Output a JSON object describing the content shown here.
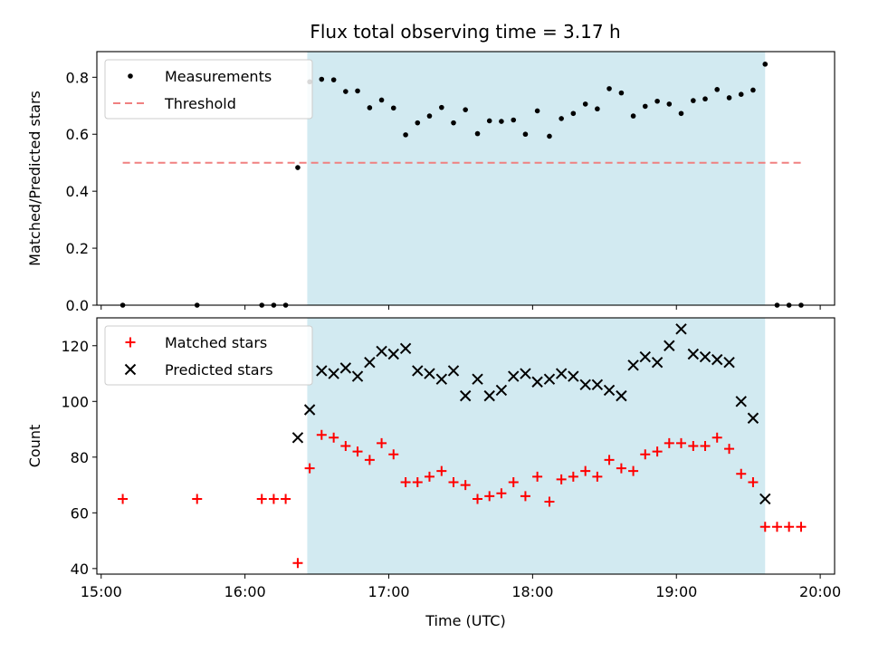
{
  "title": "Flux total observing time = 3.17 h",
  "chart_data": [
    {
      "type": "scatter",
      "ylabel": "Matched/Predicted stars",
      "ylim": [
        0,
        0.89
      ],
      "yticks": [
        0.0,
        0.2,
        0.4,
        0.6,
        0.8
      ],
      "ytick_labels": [
        "0.0",
        "0.2",
        "0.4",
        "0.6",
        "0.8"
      ],
      "xlim_hours": [
        14.97,
        20.1
      ],
      "legend_position": "top-left",
      "shade": {
        "x0": 16.433,
        "x1": 19.617,
        "color": "#add8e6"
      },
      "series": [
        {
          "name": "Measurements",
          "marker": "dot",
          "color": "#000000",
          "x": [
            15.15,
            15.667,
            16.117,
            16.2,
            16.283,
            16.367,
            16.45,
            16.533,
            16.617,
            16.7,
            16.783,
            16.867,
            16.95,
            17.033,
            17.117,
            17.2,
            17.283,
            17.367,
            17.45,
            17.533,
            17.617,
            17.7,
            17.783,
            17.867,
            17.95,
            18.033,
            18.117,
            18.2,
            18.283,
            18.367,
            18.45,
            18.533,
            18.617,
            18.7,
            18.783,
            18.867,
            18.95,
            19.033,
            19.117,
            19.2,
            19.283,
            19.367,
            19.45,
            19.533,
            19.617,
            19.7,
            19.783,
            19.867
          ],
          "y": [
            0.0,
            0.0,
            0.0,
            0.0,
            0.0,
            0.483,
            0.784,
            0.793,
            0.791,
            0.75,
            0.752,
            0.693,
            0.72,
            0.692,
            0.598,
            0.64,
            0.664,
            0.694,
            0.64,
            0.686,
            0.602,
            0.647,
            0.645,
            0.65,
            0.6,
            0.682,
            0.593,
            0.655,
            0.673,
            0.706,
            0.689,
            0.76,
            0.745,
            0.664,
            0.698,
            0.716,
            0.706,
            0.673,
            0.718,
            0.724,
            0.757,
            0.728,
            0.74,
            0.755,
            0.846,
            0.0,
            0.0,
            0.0
          ]
        },
        {
          "name": "Threshold",
          "marker": "dashed-line",
          "color": "#f08080",
          "x": [
            15.15,
            19.867
          ],
          "y": [
            0.5,
            0.5
          ]
        }
      ]
    },
    {
      "type": "scatter",
      "xlabel": "Time (UTC)",
      "ylabel": "Count",
      "ylim": [
        38,
        130
      ],
      "yticks": [
        40,
        60,
        80,
        100,
        120
      ],
      "ytick_labels": [
        "40",
        "60",
        "80",
        "100",
        "120"
      ],
      "xticks": [
        15,
        16,
        17,
        18,
        19,
        20
      ],
      "xtick_labels": [
        "15:00",
        "16:00",
        "17:00",
        "18:00",
        "19:00",
        "20:00"
      ],
      "xlim_hours": [
        14.97,
        20.1
      ],
      "legend_position": "top-left",
      "shade": {
        "x0": 16.433,
        "x1": 19.617,
        "color": "#add8e6"
      },
      "series": [
        {
          "name": "Matched stars",
          "marker": "plus",
          "color": "#ff0000",
          "x": [
            15.15,
            15.667,
            16.117,
            16.2,
            16.283,
            16.367,
            16.45,
            16.533,
            16.617,
            16.7,
            16.783,
            16.867,
            16.95,
            17.033,
            17.117,
            17.2,
            17.283,
            17.367,
            17.45,
            17.533,
            17.617,
            17.7,
            17.783,
            17.867,
            17.95,
            18.033,
            18.117,
            18.2,
            18.283,
            18.367,
            18.45,
            18.533,
            18.617,
            18.7,
            18.783,
            18.867,
            18.95,
            19.033,
            19.117,
            19.2,
            19.283,
            19.367,
            19.45,
            19.533,
            19.617,
            19.7,
            19.783,
            19.867
          ],
          "y": [
            65,
            65,
            65,
            65,
            65,
            42,
            76,
            88,
            87,
            84,
            82,
            79,
            85,
            81,
            71,
            71,
            73,
            75,
            71,
            70,
            65,
            66,
            67,
            71,
            66,
            73,
            64,
            72,
            73,
            75,
            73,
            79,
            76,
            75,
            81,
            82,
            85,
            85,
            84,
            84,
            87,
            83,
            74,
            71,
            55,
            55,
            55,
            55
          ]
        },
        {
          "name": "Predicted stars",
          "marker": "x",
          "color": "#000000",
          "x": [
            16.367,
            16.45,
            16.533,
            16.617,
            16.7,
            16.783,
            16.867,
            16.95,
            17.033,
            17.117,
            17.2,
            17.283,
            17.367,
            17.45,
            17.533,
            17.617,
            17.7,
            17.783,
            17.867,
            17.95,
            18.033,
            18.117,
            18.2,
            18.283,
            18.367,
            18.45,
            18.533,
            18.617,
            18.7,
            18.783,
            18.867,
            18.95,
            19.033,
            19.117,
            19.2,
            19.283,
            19.367,
            19.45,
            19.533,
            19.617
          ],
          "y": [
            87,
            97,
            111,
            110,
            112,
            109,
            114,
            118,
            117,
            119,
            111,
            110,
            108,
            111,
            102,
            108,
            102,
            104,
            109,
            110,
            107,
            108,
            110,
            109,
            106,
            106,
            104,
            102,
            113,
            116,
            114,
            120,
            126,
            117,
            116,
            115,
            114,
            100,
            94,
            65
          ]
        }
      ]
    }
  ]
}
